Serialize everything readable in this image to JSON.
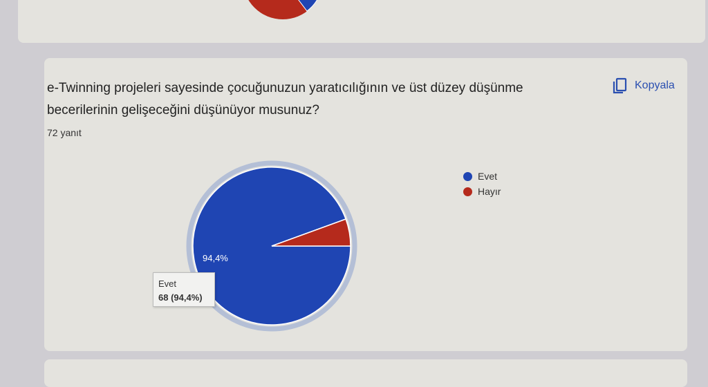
{
  "question": {
    "title": "e-Twinning projeleri sayesinde çocuğunuzun yaratıcılığının ve üst düzey düşünme becerilerinin gelişeceğini düşünüyor musunuz?",
    "response_count": "72 yanıt",
    "copy_label": "Kopyala",
    "copy_icon": "copy-icon"
  },
  "chart_data": {
    "type": "pie",
    "categories": [
      "Evet",
      "Hayır"
    ],
    "values": [
      68,
      4
    ],
    "percent_labels": [
      "94,4%",
      "5,6%"
    ],
    "colors": [
      "#1f45b3",
      "#b52a1c"
    ],
    "legend": "right",
    "highlighted": "Evet",
    "tooltip": {
      "label": "Evet",
      "value": "68 (94,4%)"
    }
  }
}
